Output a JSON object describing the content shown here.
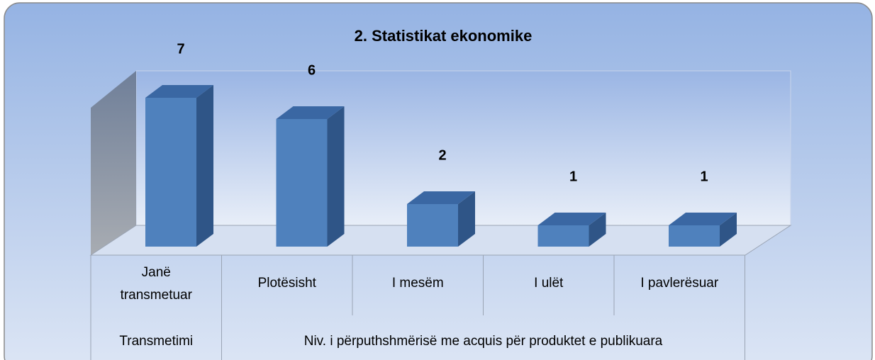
{
  "chart_data": {
    "type": "bar",
    "title": "2. Statistikat ekonomike",
    "color": "#4f81bd",
    "groups": [
      {
        "name": "Transmetimi",
        "categories": [
          "Janë transmetuar"
        ],
        "values": [
          7
        ]
      },
      {
        "name": "Niv. i përputhshmërisë me acquis për produktet e publikuara",
        "categories": [
          "Plotësisht",
          "I mesëm",
          "I ulët",
          "I pavlerësuar"
        ],
        "values": [
          6,
          2,
          1,
          1
        ]
      }
    ]
  }
}
